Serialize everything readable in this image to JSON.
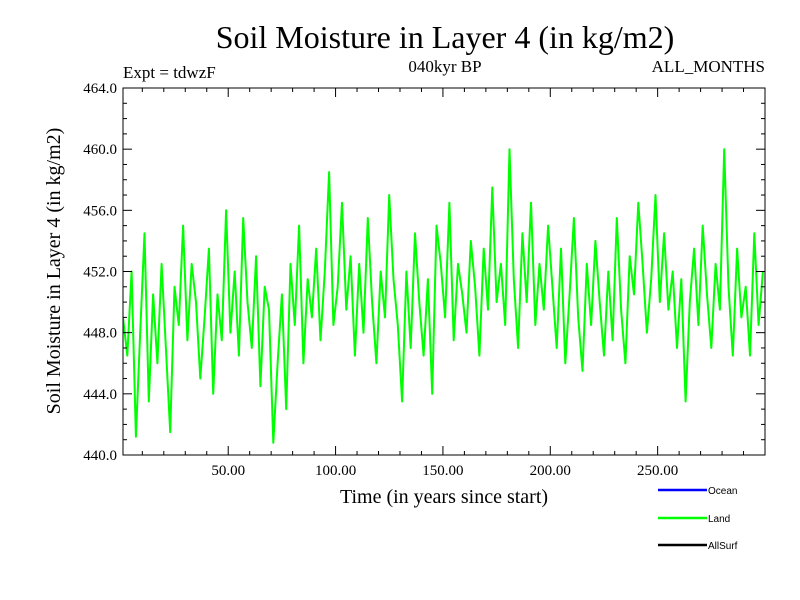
{
  "chart_data": {
    "type": "line",
    "title": "Soil Moisture in Layer 4 (in kg/m2)",
    "subtitle": "040kyr BP",
    "annotation_left": "Expt = tdwzF",
    "annotation_right": "ALL_MONTHS",
    "xlabel": "Time (in years since start)",
    "ylabel": "Soil Moisture in Layer 4 (in kg/m2)",
    "xlim": [
      1,
      300
    ],
    "ylim": [
      440.0,
      464.0
    ],
    "x_ticks": [
      50,
      100,
      150,
      200,
      250
    ],
    "x_tick_labels": [
      "50.00",
      "100.00",
      "150.00",
      "200.00",
      "250.00"
    ],
    "y_ticks": [
      440,
      444,
      448,
      452,
      456,
      460,
      464
    ],
    "y_tick_labels": [
      "440.0",
      "444.0",
      "448.0",
      "452.0",
      "456.0",
      "460.0",
      "464.0"
    ],
    "grid": false,
    "legend_position": "bottom-right",
    "series": [
      {
        "name": "Ocean",
        "color": "#0000ff",
        "values": []
      },
      {
        "name": "Land",
        "color": "#00ff00",
        "x": [
          1,
          3,
          5,
          7,
          9,
          11,
          13,
          15,
          17,
          19,
          21,
          23,
          25,
          27,
          29,
          31,
          33,
          35,
          37,
          39,
          41,
          43,
          45,
          47,
          49,
          51,
          53,
          55,
          57,
          59,
          61,
          63,
          65,
          67,
          69,
          71,
          73,
          75,
          77,
          79,
          81,
          83,
          85,
          87,
          89,
          91,
          93,
          95,
          97,
          99,
          101,
          103,
          105,
          107,
          109,
          111,
          113,
          115,
          117,
          119,
          121,
          123,
          125,
          127,
          129,
          131,
          133,
          135,
          137,
          139,
          141,
          143,
          145,
          147,
          149,
          151,
          153,
          155,
          157,
          159,
          161,
          163,
          165,
          167,
          169,
          171,
          173,
          175,
          177,
          179,
          181,
          183,
          185,
          187,
          189,
          191,
          193,
          195,
          197,
          199,
          201,
          203,
          205,
          207,
          209,
          211,
          213,
          215,
          217,
          219,
          221,
          223,
          225,
          227,
          229,
          231,
          233,
          235,
          237,
          239,
          241,
          243,
          245,
          247,
          249,
          251,
          253,
          255,
          257,
          259,
          261,
          263,
          265,
          267,
          269,
          271,
          273,
          275,
          277,
          279,
          281,
          283,
          285,
          287,
          289,
          291,
          293,
          295,
          297,
          299
        ],
        "values": [
          449.0,
          446.5,
          452.0,
          441.2,
          448.0,
          454.5,
          443.5,
          450.5,
          446.0,
          452.5,
          447.0,
          441.5,
          451.0,
          448.5,
          455.0,
          447.5,
          452.5,
          450.0,
          445.0,
          449.0,
          453.5,
          444.0,
          450.5,
          447.5,
          456.0,
          448.0,
          452.0,
          446.5,
          455.5,
          450.0,
          447.0,
          453.0,
          444.5,
          451.0,
          449.5,
          440.8,
          446.0,
          450.5,
          443.0,
          452.5,
          448.5,
          455.0,
          446.0,
          451.5,
          449.0,
          453.5,
          447.5,
          452.0,
          458.5,
          448.5,
          451.0,
          456.5,
          449.5,
          453.0,
          446.5,
          452.5,
          448.0,
          455.5,
          450.0,
          446.0,
          452.0,
          449.0,
          457.0,
          451.5,
          448.5,
          443.5,
          452.0,
          447.0,
          454.5,
          450.0,
          446.5,
          451.5,
          444.0,
          455.0,
          452.5,
          449.0,
          456.5,
          447.5,
          452.5,
          450.5,
          448.0,
          454.0,
          451.0,
          446.5,
          453.5,
          449.5,
          457.5,
          450.0,
          452.5,
          448.5,
          460.0,
          451.5,
          447.0,
          454.5,
          450.0,
          456.5,
          448.5,
          452.5,
          449.5,
          455.0,
          451.0,
          447.0,
          453.5,
          446.0,
          450.5,
          455.5,
          449.0,
          445.5,
          452.5,
          448.5,
          454.0,
          450.0,
          446.5,
          452.0,
          447.5,
          455.5,
          449.5,
          446.0,
          453.0,
          450.5,
          456.5,
          452.5,
          448.0,
          451.5,
          457.0,
          450.0,
          454.5,
          449.5,
          452.0,
          447.0,
          451.5,
          443.5,
          450.0,
          453.5,
          448.5,
          455.0,
          450.5,
          447.0,
          452.5,
          449.5,
          460.0,
          451.0,
          446.5,
          453.5,
          449.0,
          451.0,
          446.5,
          454.5,
          448.5,
          452.0
        ]
      },
      {
        "name": "AllSurf",
        "color": "#000000",
        "values": []
      }
    ]
  }
}
